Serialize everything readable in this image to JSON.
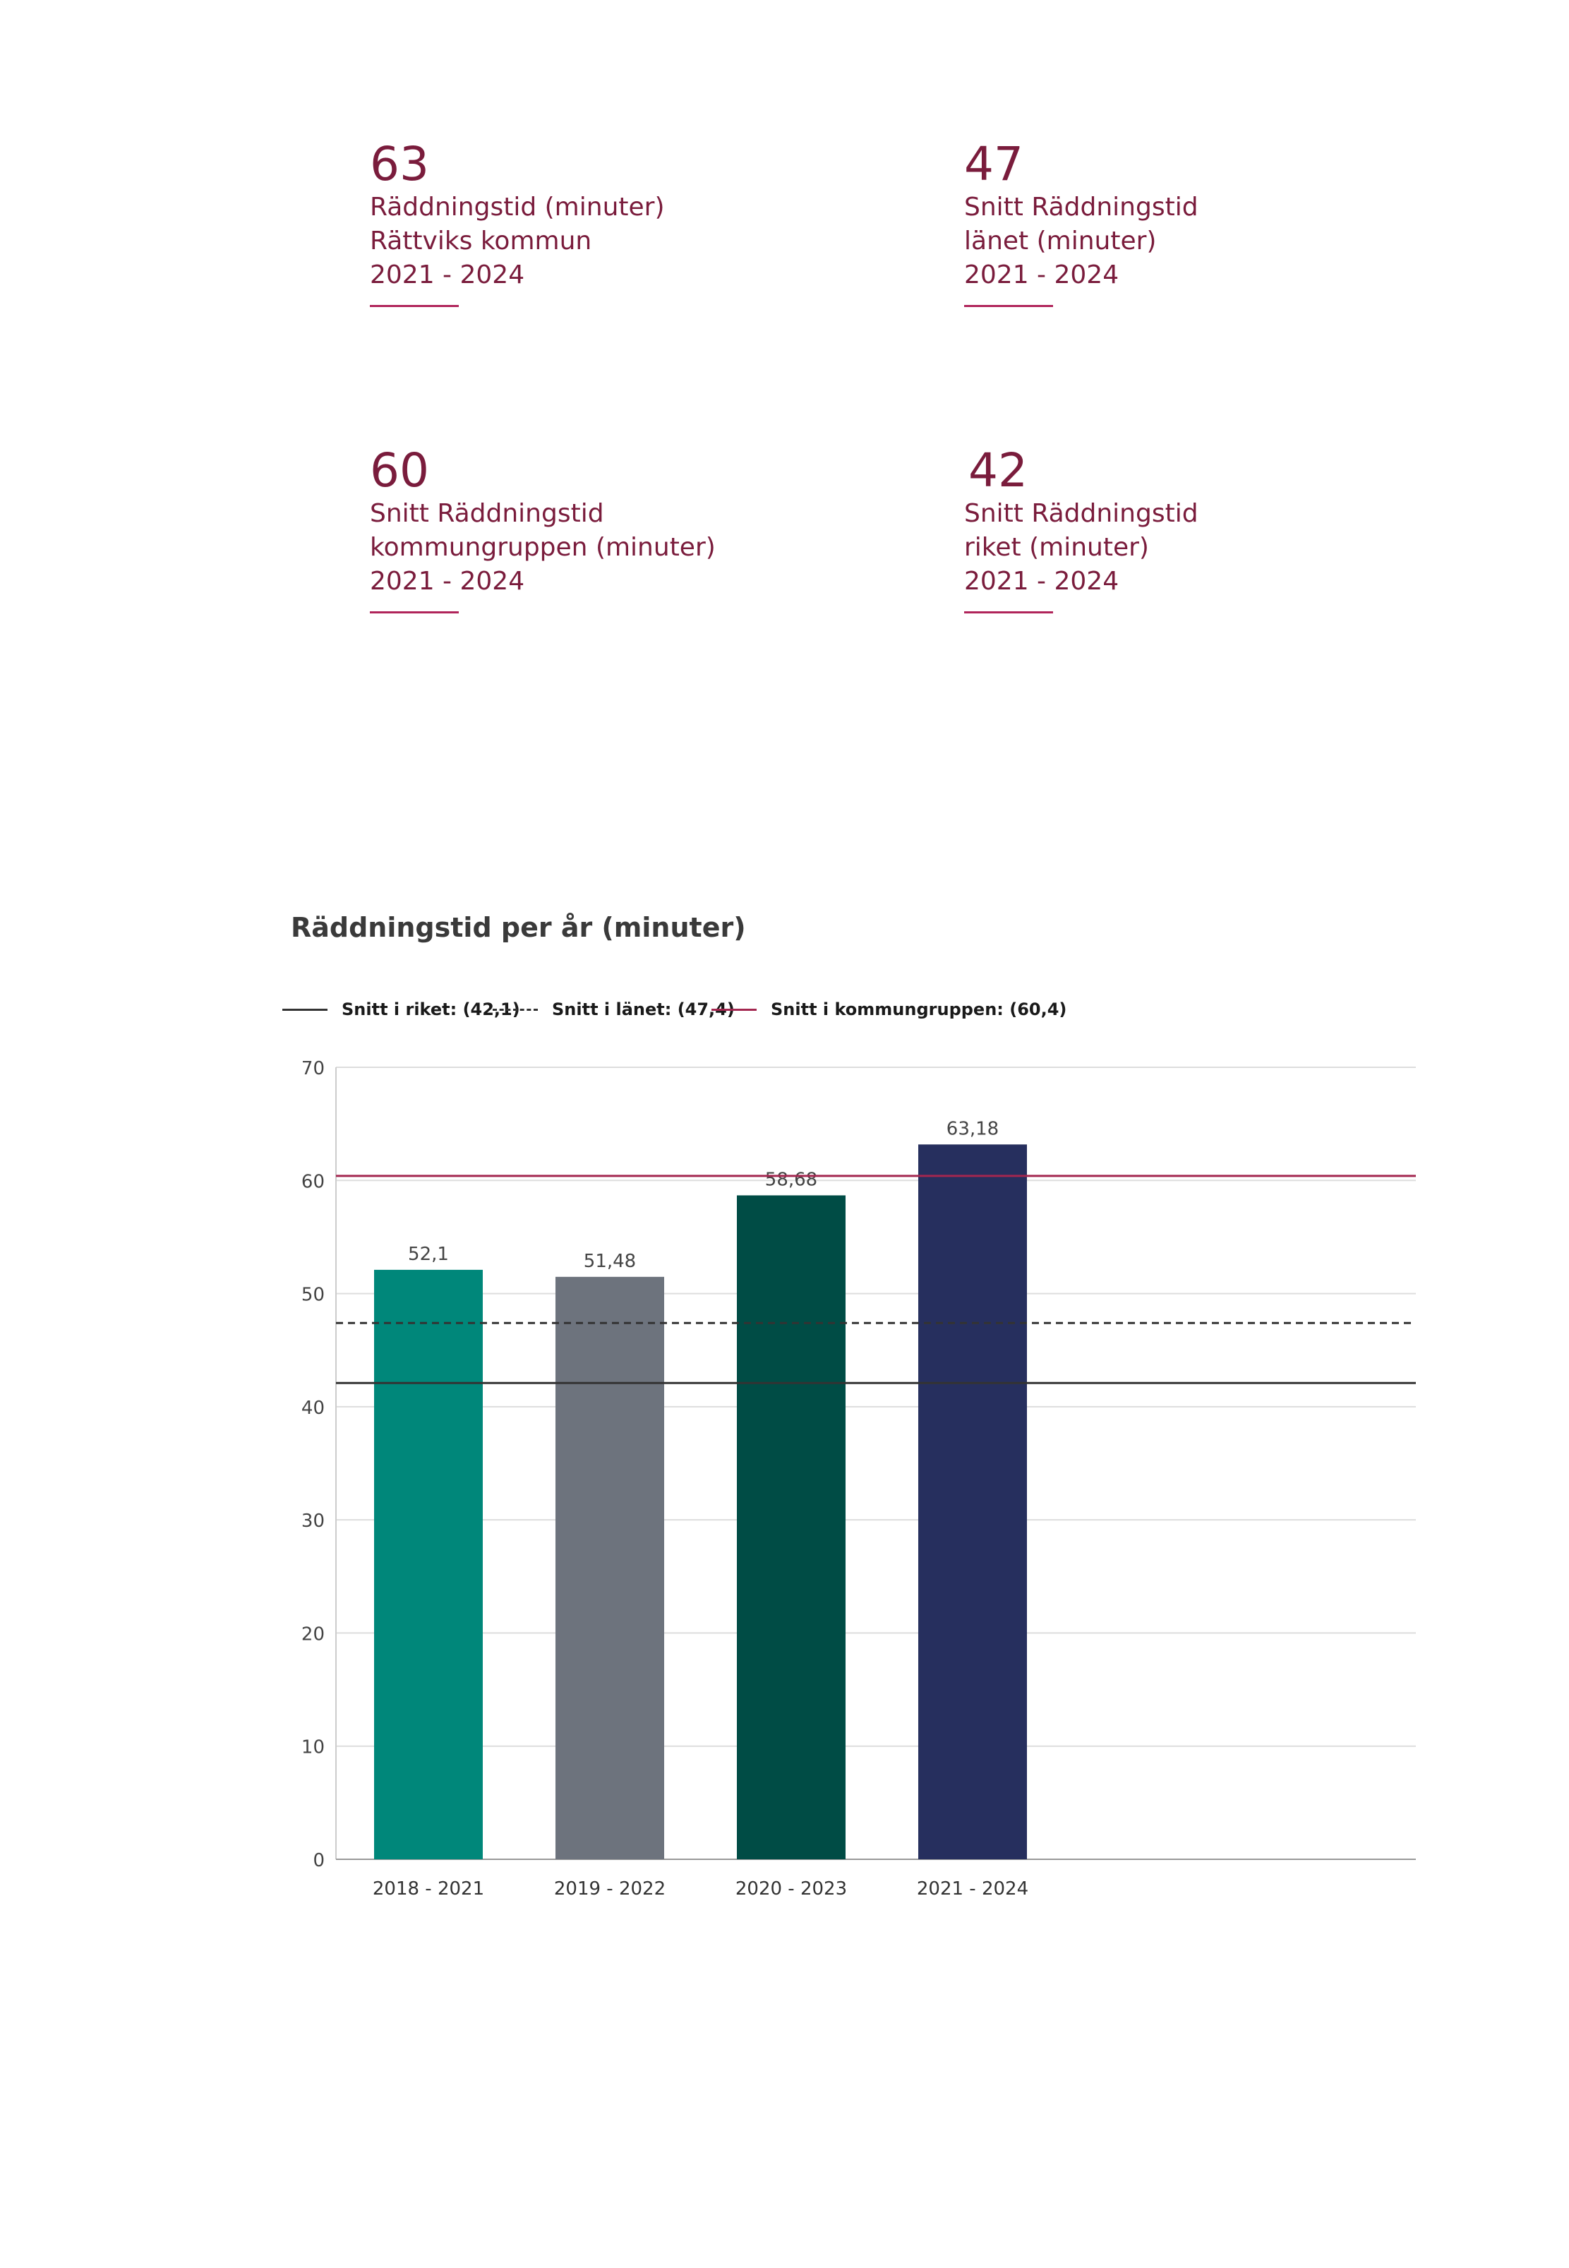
{
  "kpis": [
    {
      "value": "63",
      "lines": [
        "Räddningstid (minuter)",
        "Rättviks kommun",
        "2021 - 2024"
      ]
    },
    {
      "value": "47",
      "lines": [
        "Snitt Räddningstid",
        "länet (minuter)",
        "2021 - 2024"
      ]
    },
    {
      "value": "60",
      "lines": [
        "Snitt Räddningstid",
        "kommungruppen (minuter)",
        "2021 - 2024"
      ]
    },
    {
      "value": "42",
      "lines": [
        "Snitt Räddningstid",
        "riket (minuter)",
        "2021 - 2024"
      ]
    }
  ],
  "colors": {
    "kpi_text": "#7a1c3c",
    "kpi_rule": "#b0245a",
    "ref_riket": "#333333",
    "ref_lanet": "#333333",
    "ref_kommungrupp": "#a3264f",
    "grid": "#dddddd"
  },
  "chart_data": {
    "type": "bar",
    "title": "Räddningstid per år (minuter)",
    "categories": [
      "2018 - 2021",
      "2019 - 2022",
      "2020 - 2023",
      "2021 - 2024"
    ],
    "values": [
      52.1,
      51.48,
      58.68,
      63.18
    ],
    "value_labels": [
      "52,1",
      "51,48",
      "58,68",
      "63,18"
    ],
    "bar_colors": [
      "#00877a",
      "#6d737d",
      "#004c45",
      "#262f5e"
    ],
    "ylim": [
      0,
      70
    ],
    "yticks": [
      0,
      10,
      20,
      30,
      40,
      50,
      60,
      70
    ],
    "grid": true,
    "legend_position": "top",
    "reference_lines": [
      {
        "label": "Snitt i riket: (42,1)",
        "value": 42.1,
        "style": "solid",
        "color": "#333333"
      },
      {
        "label": "Snitt i länet: (47,4)",
        "value": 47.4,
        "style": "dashed",
        "color": "#333333"
      },
      {
        "label": "Snitt i kommungruppen: (60,4)",
        "value": 60.4,
        "style": "solid",
        "color": "#a3264f"
      }
    ]
  }
}
